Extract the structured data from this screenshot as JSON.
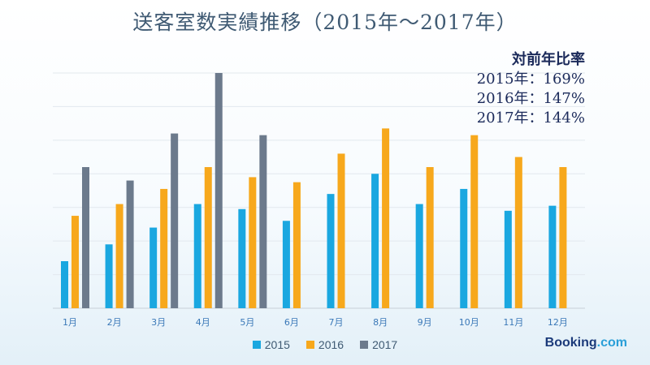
{
  "colors": {
    "s2015": "#1aa7e0",
    "s2016": "#f7a81c",
    "s2017": "#6c7a8c",
    "grid": "#e2e8ee",
    "axis": "#c8d0d8"
  },
  "yoy": {
    "title": "対前年比率",
    "lines": [
      "2015年：169%",
      "2016年：147%",
      "2017年：144%"
    ]
  },
  "brand": {
    "text1": "Booking",
    "text2": ".com"
  },
  "chart_data": {
    "type": "bar",
    "title": "送客室数実績推移（2015年～2017年）",
    "categories": [
      "1月",
      "2月",
      "3月",
      "4月",
      "5月",
      "6月",
      "7月",
      "8月",
      "9月",
      "10月",
      "11月",
      "12月"
    ],
    "series": [
      {
        "name": "2015",
        "values": [
          1.4,
          1.9,
          2.4,
          3.1,
          2.95,
          2.6,
          3.4,
          4.0,
          3.1,
          3.55,
          2.9,
          3.05
        ]
      },
      {
        "name": "2016",
        "values": [
          2.75,
          3.1,
          3.55,
          4.2,
          3.9,
          3.75,
          4.6,
          5.35,
          4.2,
          5.15,
          4.5,
          4.2
        ]
      },
      {
        "name": "2017",
        "values": [
          4.2,
          3.8,
          5.2,
          7.0,
          5.15,
          null,
          null,
          null,
          null,
          null,
          null,
          null
        ]
      }
    ],
    "ylim": [
      0,
      7
    ],
    "grid": true,
    "legend": "bottom"
  }
}
